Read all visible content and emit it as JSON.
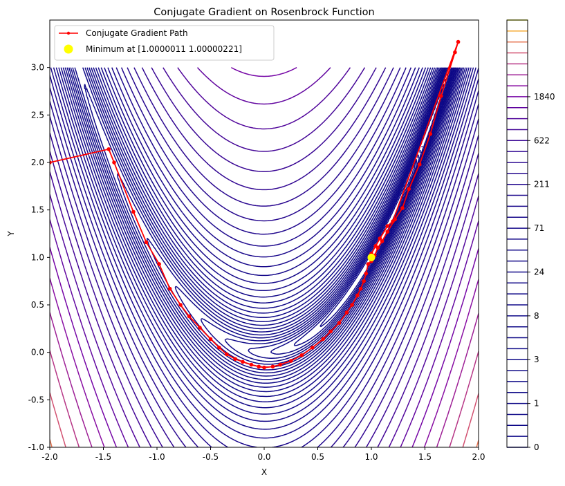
{
  "chart_data": {
    "type": "line",
    "title": "Conjugate Gradient on Rosenbrock Function",
    "xlabel": "X",
    "ylabel": "Y",
    "xlim": [
      -2.0,
      2.0
    ],
    "ylim": [
      -1.0,
      3.5
    ],
    "xticks": [
      "-2.0",
      "-1.5",
      "-1.0",
      "-0.5",
      "0.0",
      "0.5",
      "1.0",
      "1.5",
      "2.0"
    ],
    "yticks": [
      "-1.0",
      "-0.5",
      "0.0",
      "0.5",
      "1.0",
      "1.5",
      "2.0",
      "2.5",
      "3.0"
    ],
    "grid": false,
    "legend_position": "top-left",
    "contour": {
      "function": "Rosenbrock (1-x)^2 + 100(y-x^2)^2",
      "x_range": [
        -2.0,
        2.0
      ],
      "y_range": [
        -1.0,
        3.0
      ],
      "levels": "logarithmic from 0 to about 3700",
      "colormap": "plasma"
    },
    "colorbar": {
      "tick_labels": [
        "0",
        "1",
        "3",
        "8",
        "24",
        "71",
        "211",
        "622",
        "1840"
      ],
      "tick_values": [
        0,
        1,
        3,
        8,
        24,
        71,
        211,
        622,
        1840
      ]
    },
    "series": [
      {
        "name": "Conjugate Gradient Path",
        "color": "#ff0000",
        "marker": "dot",
        "x": [
          -2.0,
          -1.45,
          -1.4,
          -1.22,
          -1.1,
          -0.98,
          -0.88,
          -0.78,
          -0.7,
          -0.6,
          -0.5,
          -0.42,
          -0.35,
          -0.27,
          -0.2,
          -0.12,
          -0.05,
          0.0,
          0.08,
          0.15,
          0.25,
          0.35,
          0.45,
          0.55,
          0.62,
          0.7,
          0.77,
          0.82,
          0.87,
          0.9,
          0.93,
          0.95,
          0.97,
          1.0,
          1.03,
          1.06,
          1.1,
          1.15,
          1.22,
          1.29,
          1.35,
          1.45,
          1.55,
          1.65,
          1.78,
          1.81,
          1.2,
          1.15,
          1.08,
          1.04,
          1.0
        ],
        "y": [
          2.0,
          2.14,
          2.0,
          1.48,
          1.16,
          0.93,
          0.67,
          0.5,
          0.38,
          0.26,
          0.14,
          0.05,
          -0.02,
          -0.07,
          -0.1,
          -0.13,
          -0.15,
          -0.16,
          -0.15,
          -0.13,
          -0.09,
          -0.03,
          0.05,
          0.14,
          0.22,
          0.31,
          0.42,
          0.5,
          0.6,
          0.67,
          0.75,
          0.83,
          0.93,
          0.96,
          1.02,
          1.1,
          1.17,
          1.27,
          1.4,
          1.52,
          1.72,
          1.98,
          2.3,
          2.7,
          3.16,
          3.27,
          1.38,
          1.33,
          1.2,
          1.12,
          1.04
        ]
      }
    ],
    "minimum_marker": {
      "label": "Minimum at [1.0000011  1.00000221]",
      "x": 1.0000011,
      "y": 1.00000221,
      "color": "#ffff00"
    }
  }
}
